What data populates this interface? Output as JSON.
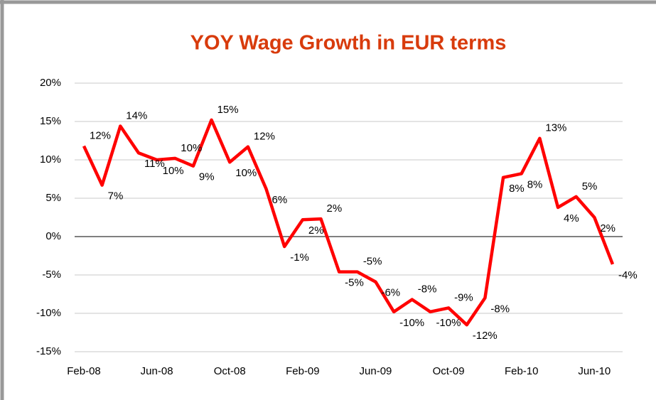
{
  "chart_data": {
    "type": "line",
    "title": "YOY Wage Growth in EUR terms",
    "categories": [
      "Feb-08",
      null,
      null,
      null,
      "Jun-08",
      null,
      null,
      null,
      "Oct-08",
      null,
      null,
      null,
      "Feb-09",
      null,
      null,
      null,
      "Jun-09",
      null,
      null,
      null,
      "Oct-09",
      null,
      null,
      null,
      "Feb-10",
      null,
      null,
      null,
      "Jun-10",
      null
    ],
    "series": [
      {
        "name": "YOY Wage Growth",
        "color": "#ff0000",
        "values": [
          11.8,
          6.7,
          14.4,
          10.9,
          10.0,
          10.2,
          9.2,
          15.2,
          9.7,
          11.7,
          6.2,
          -1.3,
          2.2,
          2.3,
          -4.6,
          -4.6,
          -5.9,
          -9.8,
          -8.2,
          -9.8,
          -9.3,
          -11.5,
          -8.0,
          7.7,
          8.2,
          12.8,
          3.8,
          5.2,
          2.5,
          -3.6
        ],
        "value_labels": [
          "12%",
          "7%",
          "14%",
          "11%",
          "10%",
          "10%",
          "9%",
          "15%",
          "10%",
          "12%",
          "6%",
          "-1%",
          "2%",
          "2%",
          "-5%",
          "-5%",
          "-6%",
          "-10%",
          "-8%",
          "-10%",
          "-9%",
          "-12%",
          "-8%",
          "8%",
          "8%",
          "13%",
          "4%",
          "5%",
          "2%",
          "-4%"
        ]
      }
    ],
    "ylim": [
      -15,
      20
    ],
    "yticks": [
      {
        "value": -15,
        "label": "-15%"
      },
      {
        "value": -10,
        "label": "-10%"
      },
      {
        "value": -5,
        "label": "-5%"
      },
      {
        "value": 0,
        "label": "0%"
      },
      {
        "value": 5,
        "label": "5%"
      },
      {
        "value": 10,
        "label": "10%"
      },
      {
        "value": 15,
        "label": "15%"
      },
      {
        "value": 20,
        "label": "20%"
      }
    ],
    "grid": true
  }
}
